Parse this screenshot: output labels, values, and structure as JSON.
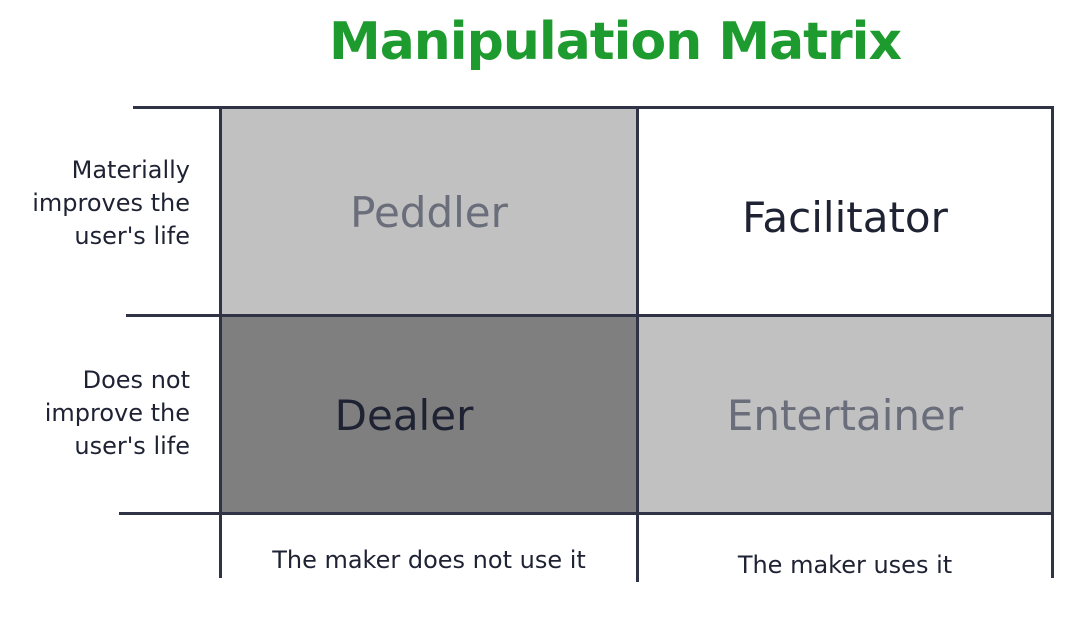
{
  "title": "Manipulation Matrix",
  "colors": {
    "title": "#1e9b2e",
    "light_gray": "#c1c1c1",
    "dark_gray": "#7f7f7f",
    "white": "#ffffff",
    "dark_text": "#1e2233",
    "muted_text": "#6a6d7a",
    "grid_line": "#2f3345"
  },
  "rows": [
    {
      "label": "Materially improves the user's life"
    },
    {
      "label": "Does not improve the user's life"
    }
  ],
  "columns": [
    {
      "label": "The maker does not use it"
    },
    {
      "label": "The maker uses it"
    }
  ],
  "cells": [
    {
      "text": "Peddler"
    },
    {
      "text": "Facilitator"
    },
    {
      "text": "Dealer"
    },
    {
      "text": "Entertainer"
    }
  ]
}
